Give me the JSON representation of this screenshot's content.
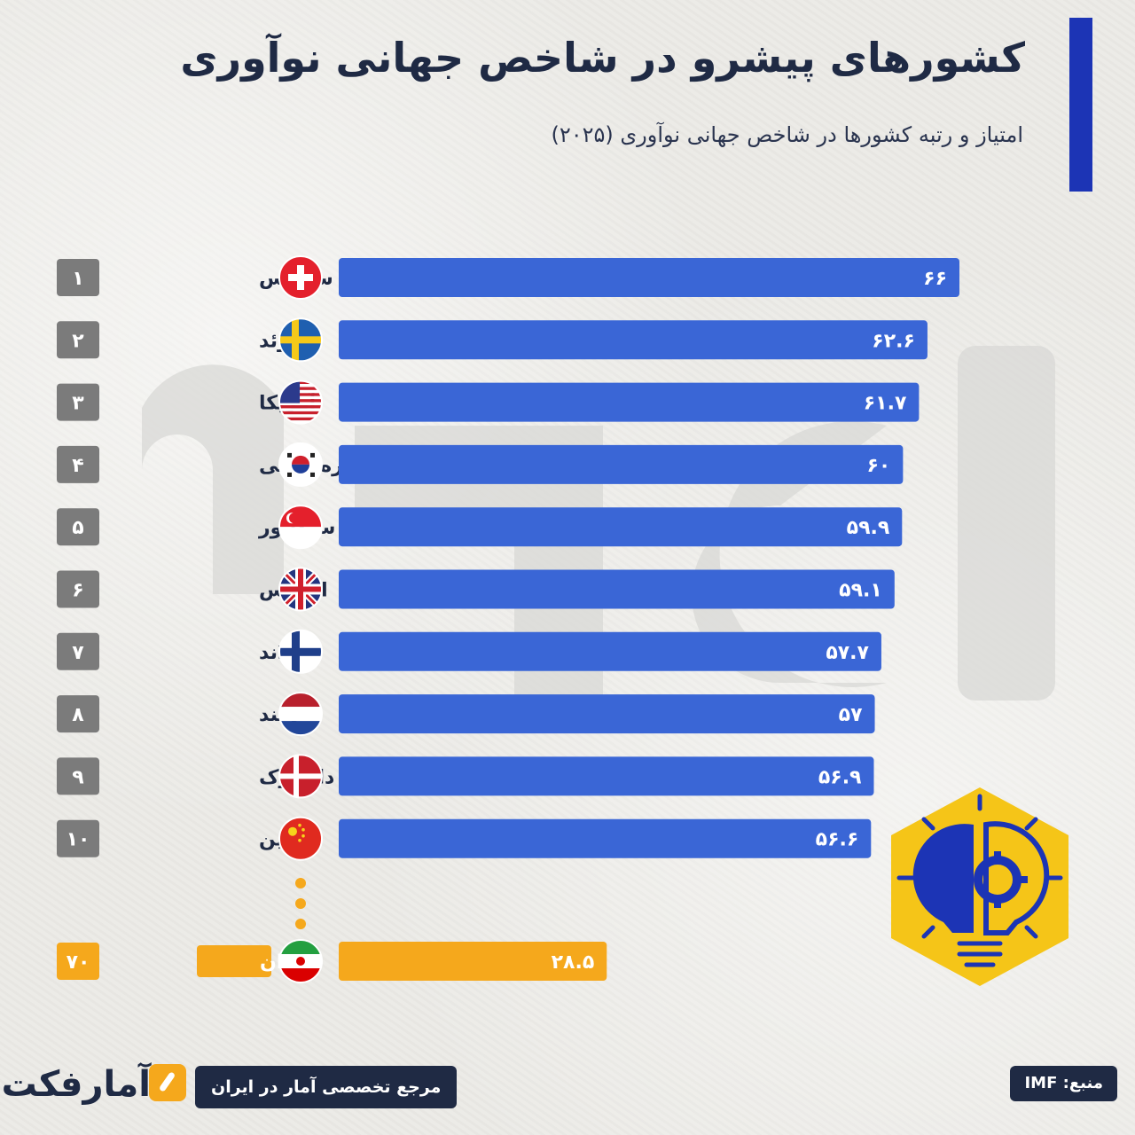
{
  "header": {
    "title": "کشورهای پیشرو در شاخص جهانی نوآوری",
    "subtitle": "امتیاز و رتبه کشورها در شاخص جهانی نوآوری (۲۰۲۵)"
  },
  "chart_data": {
    "type": "bar",
    "orientation": "horizontal",
    "categories": [
      "سوئیس",
      "سوئد",
      "آمریکا",
      "کره‌جنوبی",
      "سنگاپور",
      "انگلیس",
      "فنلاند",
      "هلند",
      "دانمارک",
      "چین",
      "ایران"
    ],
    "ranks": [
      "۱",
      "۲",
      "۳",
      "۴",
      "۵",
      "۶",
      "۷",
      "۸",
      "۹",
      "۱۰",
      "۷۰"
    ],
    "values": [
      66,
      62.6,
      61.7,
      60,
      59.9,
      59.1,
      57.7,
      57,
      56.9,
      56.6,
      28.5
    ],
    "value_labels": [
      "۶۶",
      "۶۲.۶",
      "۶۱.۷",
      "۶۰",
      "۵۹.۹",
      "۵۹.۱",
      "۵۷.۷",
      "۵۷",
      "۵۶.۹",
      "۵۶.۶",
      "۲۸.۵"
    ],
    "flags": [
      "switzerland",
      "sweden",
      "usa",
      "south-korea",
      "singapore",
      "uk",
      "finland",
      "netherlands",
      "denmark",
      "china",
      "iran"
    ],
    "highlight_index": 10,
    "colors": {
      "bar": "#3a66d6",
      "highlight": "#f5a81c",
      "rank": "#7b7b7b"
    }
  },
  "footer": {
    "brand": "آمارفکت",
    "tagline": "مرجع تخصصی آمار در ایران",
    "source": "منبع: IMF"
  },
  "decor": {
    "bulb_icon": "lightbulb-gear-icon",
    "accent": "#f5c518",
    "navy": "#1c34b5"
  }
}
